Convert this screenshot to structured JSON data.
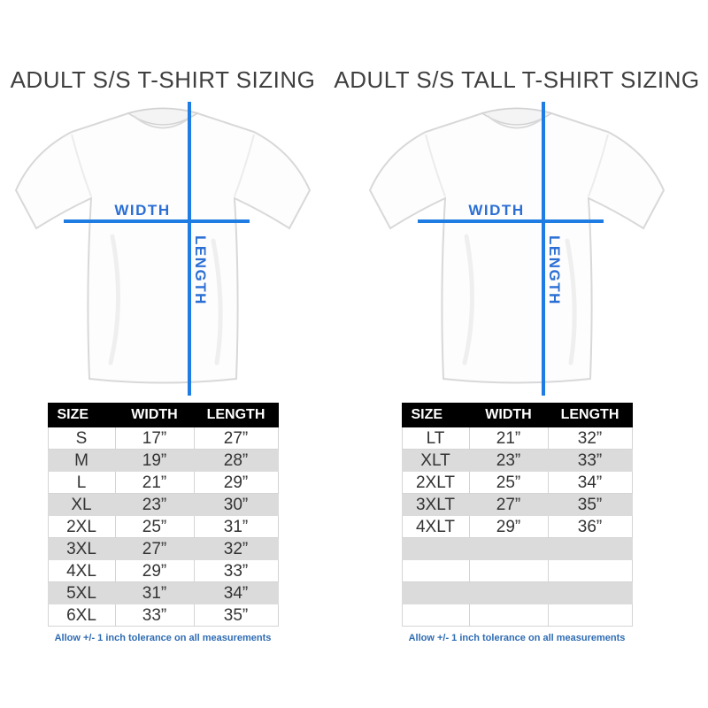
{
  "colors": {
    "line_blue": "#1f7ce2",
    "label_blue": "#2b6fd4",
    "note_blue": "#2f6cb3",
    "header_bg": "#000000",
    "header_text": "#ffffff",
    "alt_row_bg": "#dbdbdb",
    "body_text": "#333333",
    "title_text": "#3f3f3f"
  },
  "panels": [
    {
      "title": "ADULT S/S T-SHIRT SIZING",
      "diagram": {
        "width_label": "WIDTH",
        "length_label": "LENGTH"
      },
      "table": {
        "headers": [
          "SIZE",
          "WIDTH",
          "LENGTH"
        ],
        "rows": [
          [
            "S",
            "17”",
            "27”"
          ],
          [
            "M",
            "19”",
            "28”"
          ],
          [
            "L",
            "21”",
            "29”"
          ],
          [
            "XL",
            "23”",
            "30”"
          ],
          [
            "2XL",
            "25”",
            "31”"
          ],
          [
            "3XL",
            "27”",
            "32”"
          ],
          [
            "4XL",
            "29”",
            "33”"
          ],
          [
            "5XL",
            "31”",
            "34”"
          ],
          [
            "6XL",
            "33”",
            "35”"
          ]
        ]
      },
      "note": "Allow +/- 1 inch tolerance on all measurements"
    },
    {
      "title": "ADULT S/S TALL T-SHIRT SIZING",
      "diagram": {
        "width_label": "WIDTH",
        "length_label": "LENGTH"
      },
      "table": {
        "headers": [
          "SIZE",
          "WIDTH",
          "LENGTH"
        ],
        "rows": [
          [
            "LT",
            "21”",
            "32”"
          ],
          [
            "XLT",
            "23”",
            "33”"
          ],
          [
            "2XLT",
            "25”",
            "34”"
          ],
          [
            "3XLT",
            "27”",
            "35”"
          ],
          [
            "4XLT",
            "29”",
            "36”"
          ],
          [
            "",
            "",
            ""
          ],
          [
            "",
            "",
            ""
          ],
          [
            "",
            "",
            ""
          ],
          [
            "",
            "",
            ""
          ]
        ]
      },
      "note": "Allow +/- 1 inch tolerance on all measurements"
    }
  ],
  "chart_data": [
    {
      "type": "table",
      "title": "ADULT S/S T-SHIRT SIZING",
      "columns": [
        "SIZE",
        "WIDTH",
        "LENGTH"
      ],
      "units": "inches",
      "rows": [
        [
          "S",
          17,
          27
        ],
        [
          "M",
          19,
          28
        ],
        [
          "L",
          21,
          29
        ],
        [
          "XL",
          23,
          30
        ],
        [
          "2XL",
          25,
          31
        ],
        [
          "3XL",
          27,
          32
        ],
        [
          "4XL",
          29,
          33
        ],
        [
          "5XL",
          31,
          34
        ],
        [
          "6XL",
          33,
          35
        ]
      ],
      "note": "Allow +/- 1 inch tolerance on all measurements"
    },
    {
      "type": "table",
      "title": "ADULT S/S TALL T-SHIRT SIZING",
      "columns": [
        "SIZE",
        "WIDTH",
        "LENGTH"
      ],
      "units": "inches",
      "rows": [
        [
          "LT",
          21,
          32
        ],
        [
          "XLT",
          23,
          33
        ],
        [
          "2XLT",
          25,
          34
        ],
        [
          "3XLT",
          27,
          35
        ],
        [
          "4XLT",
          29,
          36
        ]
      ],
      "note": "Allow +/- 1 inch tolerance on all measurements"
    }
  ]
}
